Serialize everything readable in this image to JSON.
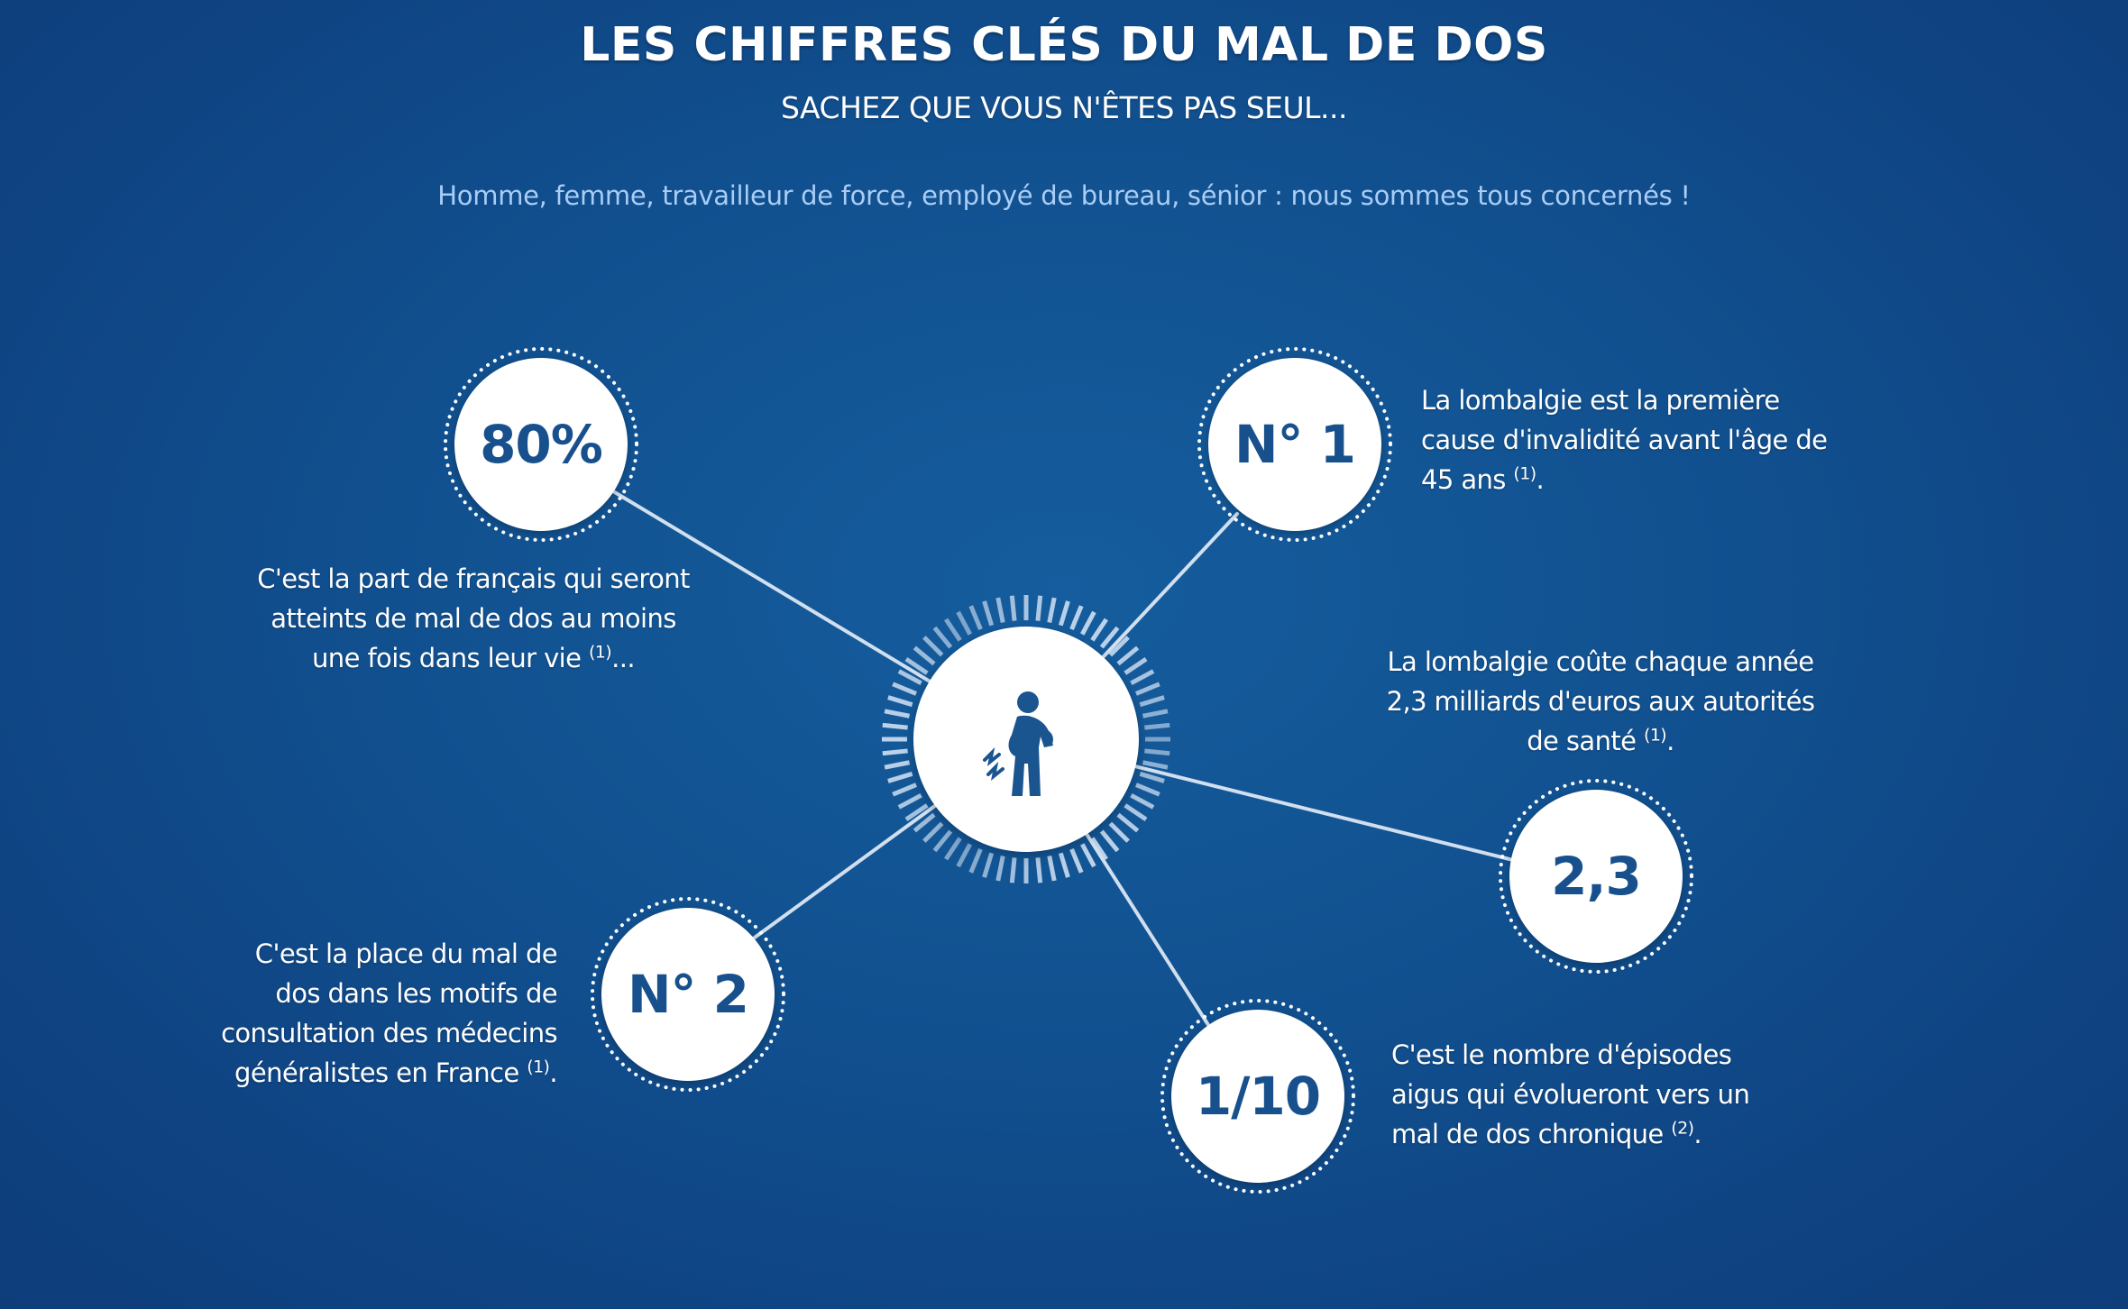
{
  "header": {
    "title": "LES CHIFFRES CLÉS DU MAL DE DOS",
    "subtitle": "SACHEZ QUE VOUS N'ÊTES PAS SEUL...",
    "tagline": "Homme, femme, travailleur de force, employé de bureau, sénior : nous sommes tous concernés !"
  },
  "hub": {
    "icon": "back-pain-person-icon"
  },
  "colors": {
    "accent": "#17508c",
    "background": "#11508f",
    "tagline": "#a9cdf6"
  },
  "stats": [
    {
      "value": "80%",
      "text": "C'est la part de français qui seront atteints de mal de dos au moins une fois dans leur vie ",
      "ref": "(1)",
      "tail": "..."
    },
    {
      "value": "N° 1",
      "text": "La lombalgie est la première cause d'invalidité avant l'âge de 45 ans ",
      "ref": "(1)",
      "tail": "."
    },
    {
      "value": "2,3",
      "text": "La lombalgie coûte chaque année 2,3 milliards d'euros aux autorités de santé ",
      "ref": "(1)",
      "tail": "."
    },
    {
      "value": "N° 2",
      "text": "C'est la place du mal de dos dans les motifs de consultation des médecins généralistes en France ",
      "ref": "(1)",
      "tail": "."
    },
    {
      "value": "1/10",
      "text": "C'est le nombre d'épisodes aigus qui évolueront vers un mal de dos chronique ",
      "ref": "(2)",
      "tail": "."
    }
  ]
}
